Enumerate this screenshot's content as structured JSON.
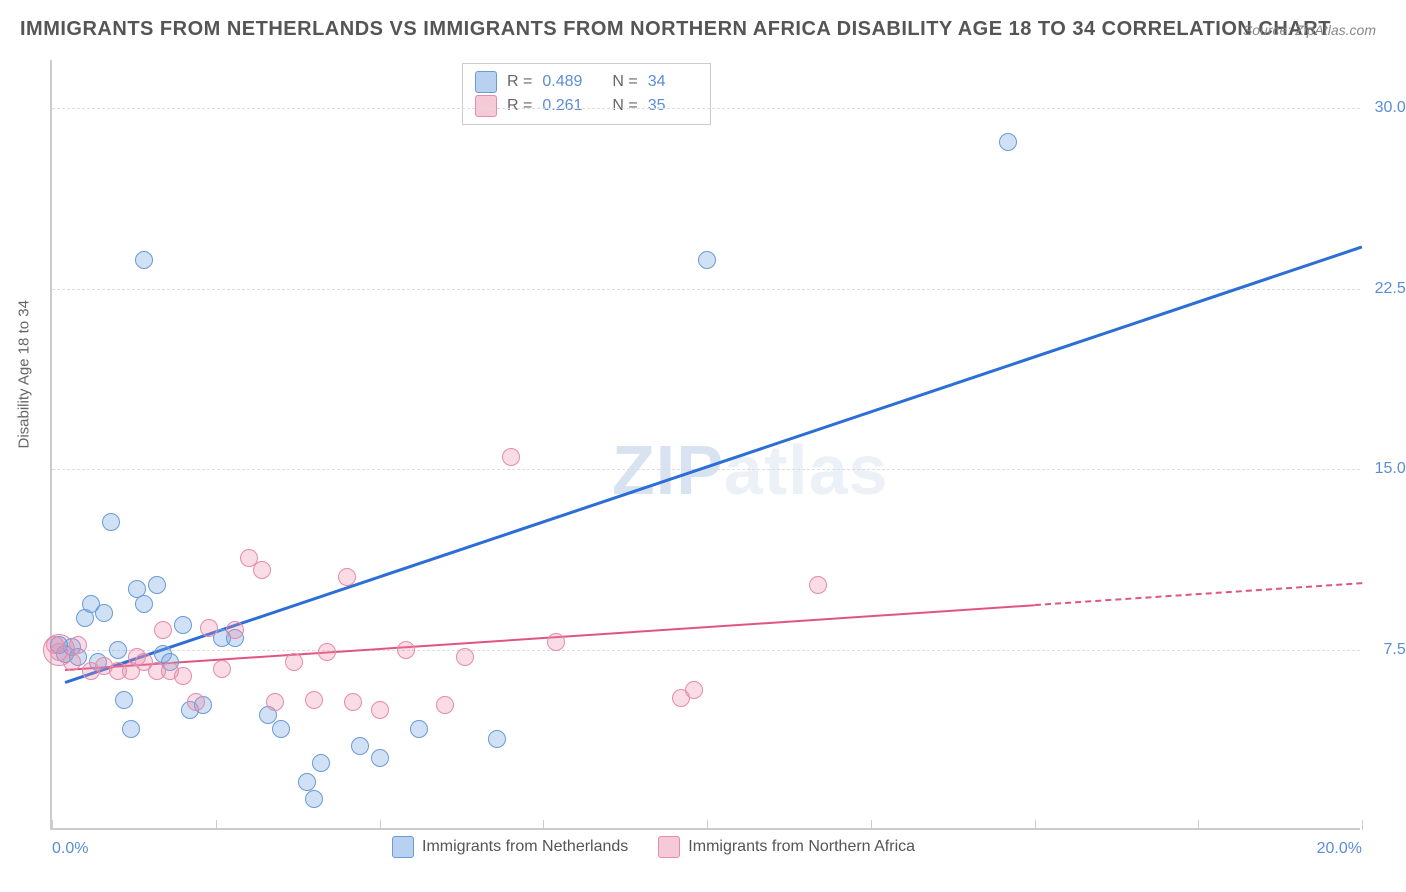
{
  "title": "IMMIGRANTS FROM NETHERLANDS VS IMMIGRANTS FROM NORTHERN AFRICA DISABILITY AGE 18 TO 34 CORRELATION CHART",
  "source": "Source: ZipAtlas.com",
  "y_axis_title": "Disability Age 18 to 34",
  "watermark_zip": "ZIP",
  "watermark_atlas": "atlas",
  "chart": {
    "type": "scatter",
    "xlim": [
      0,
      20
    ],
    "ylim": [
      0,
      32
    ],
    "x_ticks": [
      0,
      10,
      20
    ],
    "x_tick_labels": [
      "0.0%",
      "",
      "20.0%"
    ],
    "x_minor_ticks": [
      2.5,
      5,
      7.5,
      12.5,
      15,
      17.5
    ],
    "y_ticks": [
      7.5,
      15.0,
      22.5,
      30.0
    ],
    "y_tick_labels": [
      "7.5%",
      "15.0%",
      "22.5%",
      "30.0%"
    ],
    "background_color": "#ffffff",
    "grid_color": "#dddddd",
    "axis_color": "#cccccc",
    "tick_label_color": "#5b8dd6",
    "marker_radius": 9,
    "marker_stroke_width": 1.5,
    "series": [
      {
        "name": "Immigrants from Netherlands",
        "label": "Immigrants from Netherlands",
        "fill_color": "rgba(120,165,225,0.35)",
        "stroke_color": "#6a9bd8",
        "swatch_fill": "#b9d1f0",
        "swatch_border": "#6a9bd8",
        "trend_color": "#2b6fd6",
        "trend_width": 2.5,
        "R": "0.489",
        "N": "34",
        "trend": {
          "x1": 0.2,
          "y1": 6.2,
          "x2": 20.0,
          "y2": 24.3,
          "dash_from_x": null
        },
        "points": [
          [
            0.2,
            7.3
          ],
          [
            0.3,
            7.6
          ],
          [
            0.4,
            7.2
          ],
          [
            0.5,
            8.8
          ],
          [
            0.6,
            9.4
          ],
          [
            0.7,
            7.0
          ],
          [
            0.8,
            9.0
          ],
          [
            0.9,
            12.8
          ],
          [
            1.0,
            7.5
          ],
          [
            1.1,
            5.4
          ],
          [
            1.2,
            4.2
          ],
          [
            1.3,
            10.0
          ],
          [
            1.4,
            9.4
          ],
          [
            1.4,
            23.7
          ],
          [
            1.6,
            10.2
          ],
          [
            1.7,
            7.3
          ],
          [
            1.8,
            7.0
          ],
          [
            2.0,
            8.5
          ],
          [
            2.1,
            5.0
          ],
          [
            2.3,
            5.2
          ],
          [
            2.6,
            8.0
          ],
          [
            2.8,
            8.0
          ],
          [
            3.3,
            4.8
          ],
          [
            3.5,
            4.2
          ],
          [
            3.9,
            2.0
          ],
          [
            4.0,
            1.3
          ],
          [
            4.1,
            2.8
          ],
          [
            4.7,
            3.5
          ],
          [
            5.0,
            3.0
          ],
          [
            5.6,
            4.2
          ],
          [
            6.8,
            3.8
          ],
          [
            10.0,
            23.7
          ],
          [
            14.6,
            28.6
          ],
          [
            0.1,
            7.7
          ]
        ]
      },
      {
        "name": "Immigrants from Northern Africa",
        "label": "Immigrants from Northern Africa",
        "fill_color": "rgba(235,140,170,0.3)",
        "stroke_color": "#e58bab",
        "swatch_fill": "#f6c9d7",
        "swatch_border": "#e58bab",
        "trend_color": "#e0557f",
        "trend_width": 2,
        "R": "0.261",
        "N": "35",
        "trend": {
          "x1": 0.2,
          "y1": 6.7,
          "x2": 20.0,
          "y2": 10.3,
          "dash_from_x": 15.0
        },
        "points": [
          [
            0.1,
            7.4
          ],
          [
            0.3,
            7.0
          ],
          [
            0.4,
            7.7
          ],
          [
            0.6,
            6.6
          ],
          [
            0.8,
            6.8
          ],
          [
            1.0,
            6.6
          ],
          [
            1.2,
            6.6
          ],
          [
            1.3,
            7.2
          ],
          [
            1.4,
            7.0
          ],
          [
            1.6,
            6.6
          ],
          [
            1.7,
            8.3
          ],
          [
            1.8,
            6.6
          ],
          [
            2.0,
            6.4
          ],
          [
            2.2,
            5.3
          ],
          [
            2.4,
            8.4
          ],
          [
            2.6,
            6.7
          ],
          [
            2.8,
            8.3
          ],
          [
            3.0,
            11.3
          ],
          [
            3.2,
            10.8
          ],
          [
            3.4,
            5.3
          ],
          [
            3.7,
            7.0
          ],
          [
            4.0,
            5.4
          ],
          [
            4.2,
            7.4
          ],
          [
            4.5,
            10.5
          ],
          [
            4.6,
            5.3
          ],
          [
            5.0,
            5.0
          ],
          [
            5.4,
            7.5
          ],
          [
            6.0,
            5.2
          ],
          [
            6.3,
            7.2
          ],
          [
            7.0,
            15.5
          ],
          [
            7.7,
            7.8
          ],
          [
            9.6,
            5.5
          ],
          [
            9.8,
            5.8
          ],
          [
            11.7,
            10.2
          ],
          [
            0.05,
            7.7
          ]
        ],
        "big_markers": [
          {
            "x": 0.1,
            "y": 7.5,
            "r": 16
          }
        ]
      }
    ]
  },
  "legend_top": {
    "rows": [
      {
        "series_idx": 0
      },
      {
        "series_idx": 1
      }
    ]
  },
  "legend_bottom": {
    "items": [
      {
        "series_idx": 0
      },
      {
        "series_idx": 1
      }
    ]
  }
}
